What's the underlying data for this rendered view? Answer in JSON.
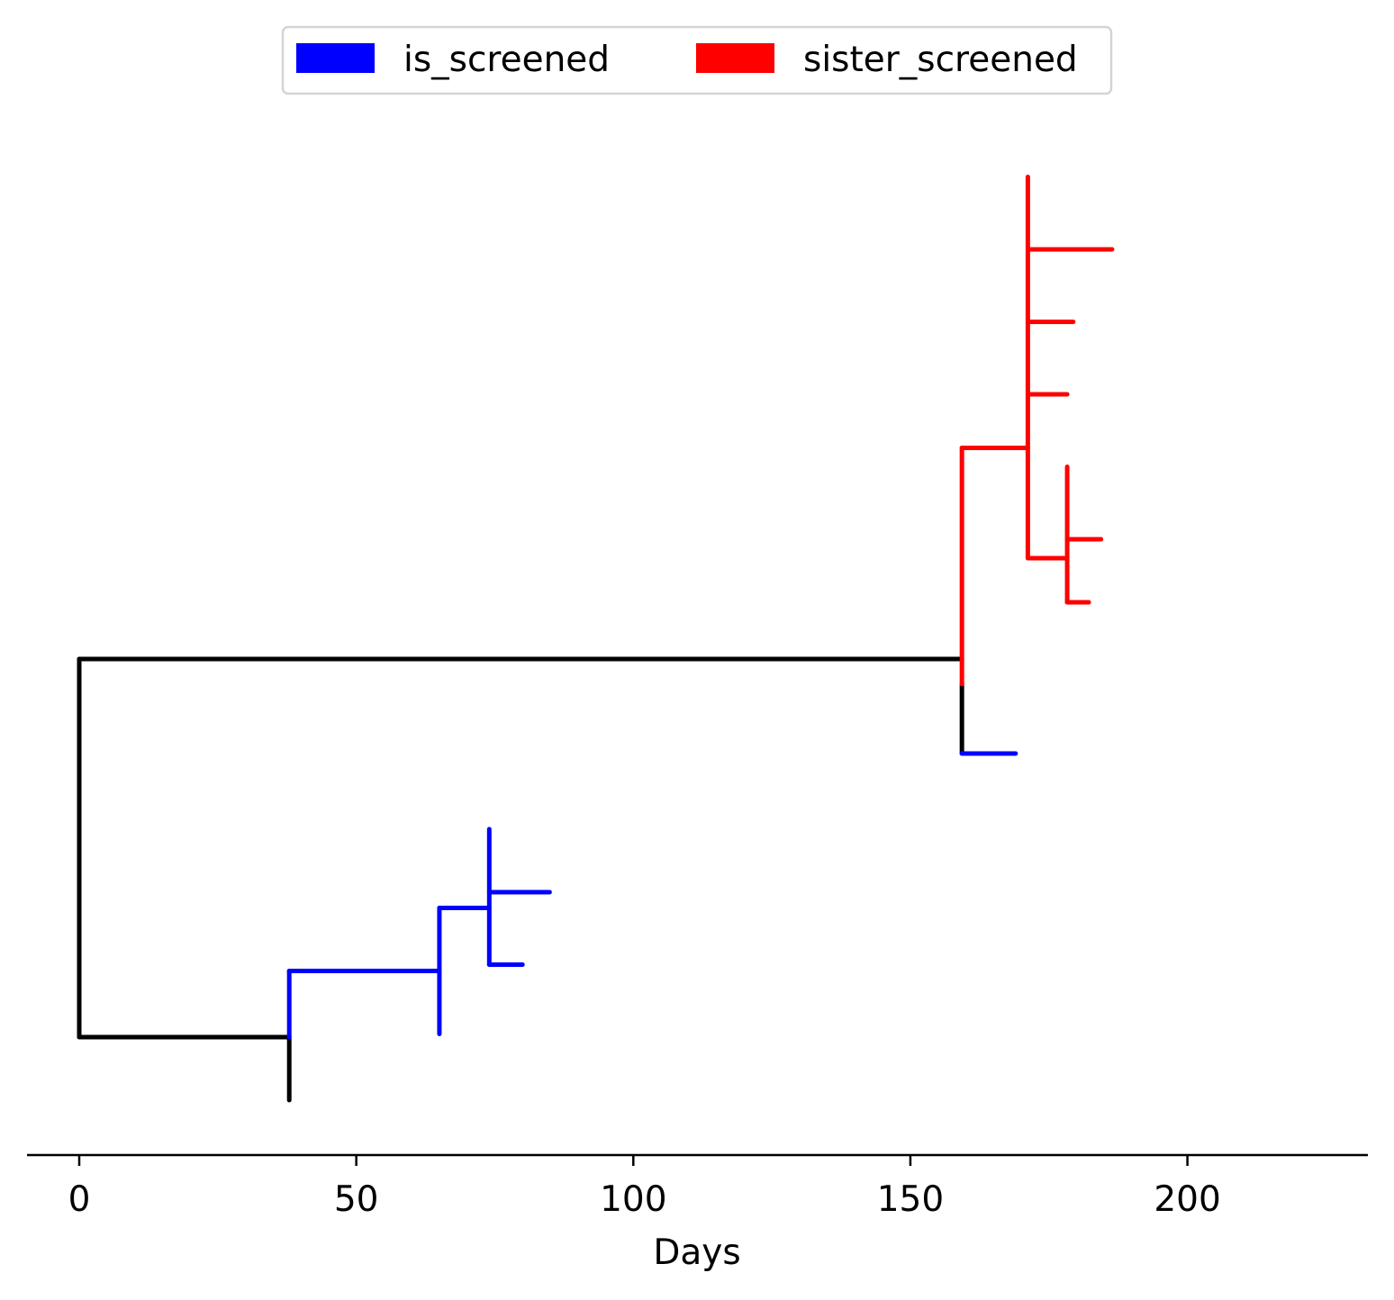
{
  "chart_data": {
    "type": "tree",
    "xlabel": "Days",
    "xlim": [
      -9.3,
      232.5
    ],
    "xticks": [
      0,
      50,
      100,
      150,
      200
    ],
    "grid": false,
    "legend": {
      "placement": "top-center",
      "entries": [
        {
          "label": "is_screened",
          "color": "#0000ff"
        },
        {
          "label": "sister_screened",
          "color": "#ff0000"
        }
      ]
    },
    "colors": {
      "base": "#000000",
      "is_screened": "#0000ff",
      "sister_screened": "#ff0000"
    },
    "edges": [
      {
        "id": "root-vertical",
        "group": "base",
        "x": [
          0,
          0
        ],
        "y": [
          1,
          7
        ]
      },
      {
        "id": "root-to-lower",
        "group": "base",
        "x": [
          0,
          37.9
        ],
        "y": [
          1,
          1
        ]
      },
      {
        "id": "root-to-upper",
        "group": "base",
        "x": [
          0,
          159.3
        ],
        "y": [
          7,
          7
        ]
      },
      {
        "id": "lower-node-vertical",
        "group": "base",
        "x": [
          37.9,
          37.9
        ],
        "y": [
          0,
          1
        ]
      },
      {
        "id": "lower-node-vertical-blue",
        "group": "is_screened",
        "x": [
          37.9,
          37.9
        ],
        "y": [
          1,
          2.05
        ]
      },
      {
        "id": "lower-branch",
        "group": "is_screened",
        "x": [
          37.9,
          65
        ],
        "y": [
          2.05,
          2.05
        ]
      },
      {
        "id": "node65-vertical",
        "group": "is_screened",
        "x": [
          65,
          65
        ],
        "y": [
          1.05,
          3.05
        ]
      },
      {
        "id": "node65-branch",
        "group": "is_screened",
        "x": [
          65,
          74
        ],
        "y": [
          3.05,
          3.05
        ]
      },
      {
        "id": "node74-vertical",
        "group": "is_screened",
        "x": [
          74,
          74
        ],
        "y": [
          2.15,
          4.3
        ]
      },
      {
        "id": "node74-tip-upper",
        "group": "is_screened",
        "x": [
          74,
          84.9
        ],
        "y": [
          3.3,
          3.3
        ]
      },
      {
        "id": "node74-tip-lower",
        "group": "is_screened",
        "x": [
          74,
          80
        ],
        "y": [
          2.15,
          2.15
        ]
      },
      {
        "id": "upper-node-vertical-black",
        "group": "base",
        "x": [
          159.3,
          159.3
        ],
        "y": [
          5.5,
          6.6
        ]
      },
      {
        "id": "upper-node-vertical-red",
        "group": "sister_screened",
        "x": [
          159.3,
          159.3
        ],
        "y": [
          6.6,
          10.35
        ]
      },
      {
        "id": "upper-tip-blue",
        "group": "is_screened",
        "x": [
          159.3,
          169
        ],
        "y": [
          5.5,
          5.5
        ]
      },
      {
        "id": "upper-branch-red",
        "group": "sister_screened",
        "x": [
          159.3,
          171.2
        ],
        "y": [
          10.35,
          10.35
        ]
      },
      {
        "id": "node171-vertical",
        "group": "sister_screened",
        "x": [
          171.2,
          171.2
        ],
        "y": [
          8.6,
          14.65
        ]
      },
      {
        "id": "node171-tip-1",
        "group": "sister_screened",
        "x": [
          171.2,
          186.4
        ],
        "y": [
          13.5,
          13.5
        ]
      },
      {
        "id": "node171-tip-2",
        "group": "sister_screened",
        "x": [
          171.2,
          179.4
        ],
        "y": [
          12.35,
          12.35
        ]
      },
      {
        "id": "node171-tip-3",
        "group": "sister_screened",
        "x": [
          171.2,
          178.3
        ],
        "y": [
          11.2,
          11.2
        ]
      },
      {
        "id": "node171-branch",
        "group": "sister_screened",
        "x": [
          171.2,
          178.3
        ],
        "y": [
          8.6,
          8.6
        ]
      },
      {
        "id": "node178-vertical",
        "group": "sister_screened",
        "x": [
          178.3,
          178.3
        ],
        "y": [
          7.9,
          10.05
        ]
      },
      {
        "id": "node178-tip-upper",
        "group": "sister_screened",
        "x": [
          178.3,
          184.4
        ],
        "y": [
          8.9,
          8.9
        ]
      },
      {
        "id": "node178-tip-lower",
        "group": "sister_screened",
        "x": [
          178.3,
          182.2
        ],
        "y": [
          7.9,
          7.9
        ]
      }
    ]
  }
}
